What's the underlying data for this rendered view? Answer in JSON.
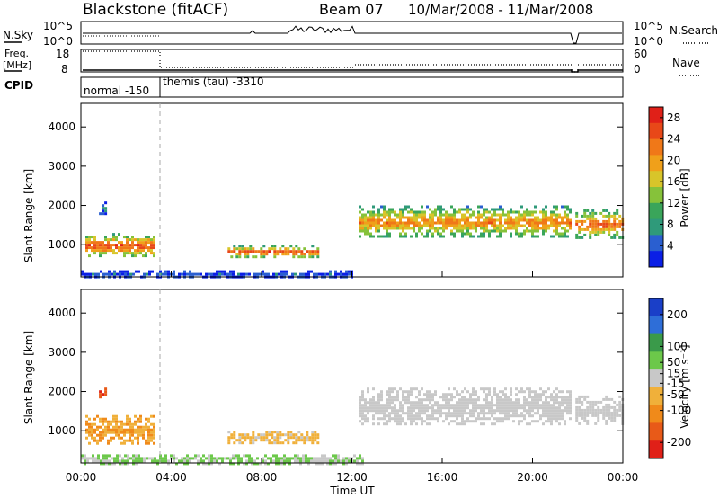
{
  "header": {
    "station": "Blackstone (fitACF)",
    "beam": "Beam 07",
    "date_range": "10/Mar/2008 - 11/Mar/2008"
  },
  "top_panel": {
    "left_label": "N.Sky",
    "left_ticks": [
      "10^5",
      "10^0"
    ],
    "right_label": "N.Search",
    "right_ticks": [
      "10^5",
      "10^0"
    ]
  },
  "freq_panel": {
    "left_label_1": "Freq.",
    "left_label_2": "[MHz]",
    "left_ticks": [
      "18",
      "8"
    ],
    "right_label": "Nave",
    "right_ticks": [
      "60",
      "0"
    ]
  },
  "cpid_panel": {
    "label": "CPID",
    "segments": [
      "normal -150",
      "themis (tau) -3310"
    ]
  },
  "colors": {
    "power_scale": [
      "#0a1fe6",
      "#2a5fd0",
      "#2f9a7a",
      "#3aa55a",
      "#86c23a",
      "#d8c52a",
      "#f0a01a",
      "#f07818",
      "#e84818",
      "#e02018"
    ],
    "velocity_scale": [
      "#1a3fc8",
      "#2e6ed8",
      "#3a9a4a",
      "#6cc84a",
      "#c8c8c8",
      "#f0b03a",
      "#f08a1a",
      "#e85a18",
      "#e02018"
    ]
  },
  "chart_data": [
    {
      "type": "heatmap",
      "title": "",
      "xlabel": "Time UT",
      "ylabel": "Slant Range [km]",
      "x_ticks": [
        "00:00",
        "04:00",
        "08:00",
        "12:00",
        "16:00",
        "20:00",
        "00:00"
      ],
      "xlim_hours": [
        0,
        24
      ],
      "y_ticks": [
        1000,
        2000,
        3000,
        4000
      ],
      "ylim": [
        180,
        4600
      ],
      "colorbar": {
        "label": "Power [dB]",
        "ticks": [
          4,
          8,
          12,
          16,
          20,
          24,
          28
        ],
        "range": [
          0,
          30
        ]
      },
      "echo_regions": [
        {
          "t_start": 0.2,
          "t_end": 3.2,
          "r_min": 700,
          "r_max": 1300,
          "peak_db": 26
        },
        {
          "t_start": 0.8,
          "t_end": 1.1,
          "r_min": 1800,
          "r_max": 2100,
          "peak_db": 6
        },
        {
          "t_start": 6.5,
          "t_end": 10.5,
          "r_min": 700,
          "r_max": 1000,
          "peak_db": 26
        },
        {
          "t_start": 12.3,
          "t_end": 21.7,
          "r_min": 1200,
          "r_max": 2000,
          "peak_db": 22
        },
        {
          "t_start": 21.9,
          "t_end": 24.0,
          "r_min": 1200,
          "r_max": 1900,
          "peak_db": 24
        },
        {
          "t_start": 0.0,
          "t_end": 12.0,
          "r_min": 180,
          "r_max": 350,
          "peak_db": 4
        }
      ]
    },
    {
      "type": "heatmap",
      "title": "",
      "xlabel": "Time UT",
      "ylabel": "Slant Range [km]",
      "x_ticks": [
        "00:00",
        "04:00",
        "08:00",
        "12:00",
        "16:00",
        "20:00",
        "00:00"
      ],
      "xlim_hours": [
        0,
        24
      ],
      "y_ticks": [
        1000,
        2000,
        3000,
        4000
      ],
      "ylim": [
        180,
        4600
      ],
      "colorbar": {
        "label": "Velocity [m s⁻¹]",
        "ticks": [
          200,
          100,
          50,
          15,
          -15,
          -50,
          -100,
          -200
        ],
        "range": [
          -250,
          250
        ]
      },
      "echo_regions": [
        {
          "t_start": 0.2,
          "t_end": 3.2,
          "r_min": 700,
          "r_max": 1400,
          "velocity": -80
        },
        {
          "t_start": 0.8,
          "t_end": 1.1,
          "r_min": 1850,
          "r_max": 2100,
          "velocity": -180
        },
        {
          "t_start": 6.5,
          "t_end": 10.5,
          "r_min": 700,
          "r_max": 1000,
          "velocity": -40
        },
        {
          "t_start": 12.3,
          "t_end": 21.7,
          "r_min": 1200,
          "r_max": 2100,
          "velocity": 0
        },
        {
          "t_start": 21.9,
          "t_end": 24.0,
          "r_min": 1200,
          "r_max": 1900,
          "velocity": 0
        },
        {
          "t_start": 0.0,
          "t_end": 12.5,
          "r_min": 180,
          "r_max": 400,
          "velocity": 30
        }
      ]
    }
  ]
}
